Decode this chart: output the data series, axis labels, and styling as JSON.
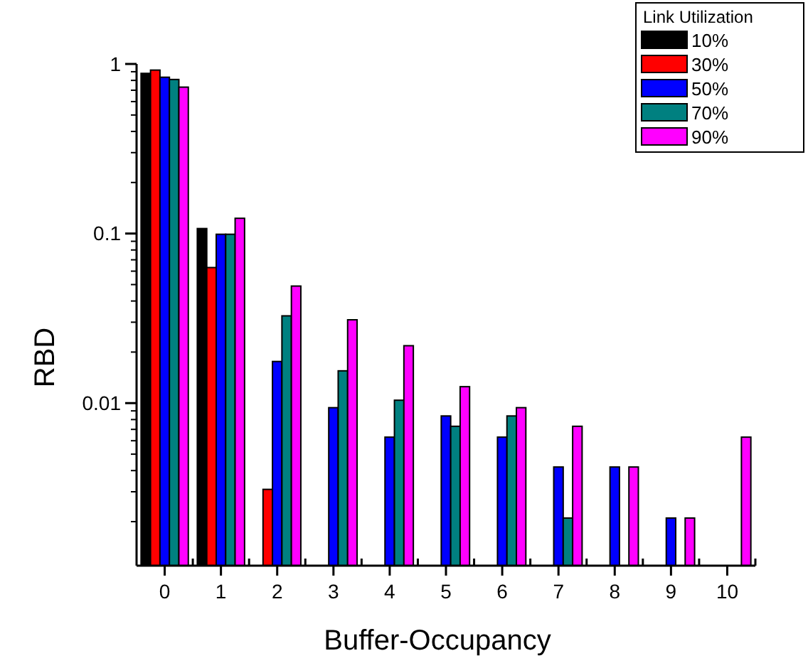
{
  "chart_data": {
    "type": "bar",
    "xlabel": "Buffer-Occupancy",
    "ylabel": "RBD",
    "legend_title": "Link Utilization",
    "legend": "top right",
    "log": true,
    "grid": false,
    "categories": [
      "0",
      "1",
      "2",
      "3",
      "4",
      "5",
      "6",
      "7",
      "8",
      "9",
      "10"
    ],
    "ylim": [
      0.0011,
      1
    ],
    "yticks": [
      0.01,
      0.1,
      1
    ],
    "series": [
      {
        "name": "10%",
        "color": "#000000",
        "values": [
          0.88,
          0.107,
          null,
          null,
          null,
          null,
          null,
          null,
          null,
          null,
          null
        ]
      },
      {
        "name": "30%",
        "color": "#ff0000",
        "values": [
          0.92,
          0.063,
          0.0031,
          null,
          null,
          null,
          null,
          null,
          null,
          null,
          null
        ]
      },
      {
        "name": "50%",
        "color": "#0000ff",
        "values": [
          0.835,
          0.099,
          0.0176,
          0.0094,
          0.0063,
          0.0084,
          0.0063,
          0.0042,
          0.0042,
          0.0021,
          null
        ]
      },
      {
        "name": "70%",
        "color": "#008080",
        "values": [
          0.81,
          0.099,
          0.0327,
          0.0155,
          0.0104,
          0.0073,
          0.0084,
          0.0021,
          null,
          null,
          null
        ]
      },
      {
        "name": "90%",
        "color": "#ff00ff",
        "values": [
          0.73,
          0.123,
          0.049,
          0.031,
          0.0218,
          0.0125,
          0.0094,
          0.0073,
          0.0042,
          0.0021,
          0.0063
        ]
      }
    ]
  }
}
